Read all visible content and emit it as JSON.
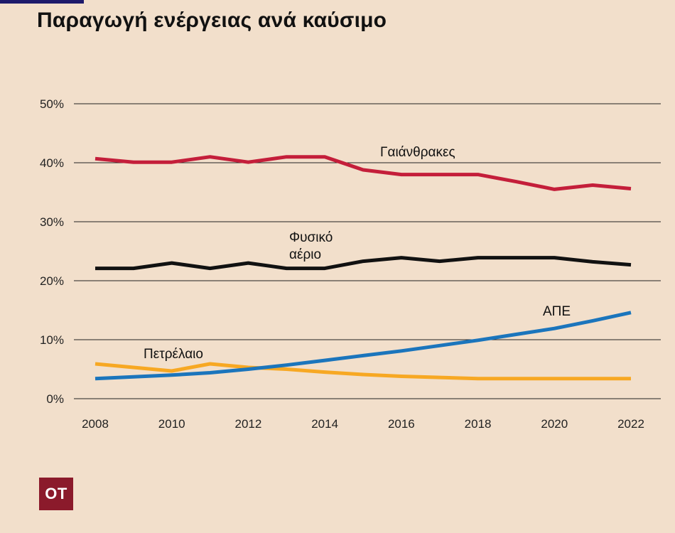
{
  "title": "Παραγωγή ενέργειας ανά καύσιμο",
  "logo": "OT",
  "colors": {
    "background": "#f2dfcb",
    "gridline": "#222222",
    "Γαιάνθρακες": "#c41e3a",
    "Φυσικό αέριο": "#111111",
    "ΑΠΕ": "#1b75bc",
    "Πετρέλαιο": "#f7a823",
    "logo": "#8b1a2b"
  },
  "chart_data": {
    "type": "line",
    "title": "Παραγωγή ενέργειας ανά καύσιμο",
    "xlabel": "",
    "ylabel": "",
    "x": [
      2008,
      2009,
      2010,
      2011,
      2012,
      2013,
      2014,
      2015,
      2016,
      2017,
      2018,
      2019,
      2020,
      2021,
      2022
    ],
    "xticks": [
      "2008",
      "2010",
      "2012",
      "2014",
      "2016",
      "2018",
      "2020",
      "2022"
    ],
    "yticks": [
      "0%",
      "10%",
      "20%",
      "30%",
      "40%",
      "50%"
    ],
    "ylim": [
      0,
      50
    ],
    "grid": true,
    "legend": "none",
    "series": [
      {
        "name": "Γαιάνθρακες",
        "label_lines": [
          "Γαιάνθρακες"
        ],
        "values": [
          40.7,
          40.1,
          40.1,
          41.0,
          40.1,
          41.0,
          41.0,
          38.8,
          38.0,
          38.0,
          38.0,
          36.8,
          35.5,
          36.2,
          35.6
        ]
      },
      {
        "name": "Φυσικό αέριο",
        "label_lines": [
          "Φυσικό",
          "αέριο"
        ],
        "values": [
          22.1,
          22.1,
          23.0,
          22.1,
          23.0,
          22.1,
          22.1,
          23.3,
          23.9,
          23.3,
          23.9,
          23.9,
          23.9,
          23.2,
          22.7
        ]
      },
      {
        "name": "ΑΠΕ",
        "label_lines": [
          "ΑΠΕ"
        ],
        "values": [
          3.4,
          3.7,
          4.0,
          4.4,
          5.0,
          5.7,
          6.5,
          7.3,
          8.1,
          9.0,
          9.9,
          10.9,
          11.9,
          13.2,
          14.6
        ]
      },
      {
        "name": "Πετρέλαιο",
        "label_lines": [
          "Πετρέλαιο"
        ],
        "values": [
          5.9,
          5.3,
          4.7,
          5.9,
          5.3,
          5.0,
          4.5,
          4.1,
          3.8,
          3.6,
          3.4,
          3.4,
          3.4,
          3.4,
          3.4
        ]
      }
    ]
  }
}
